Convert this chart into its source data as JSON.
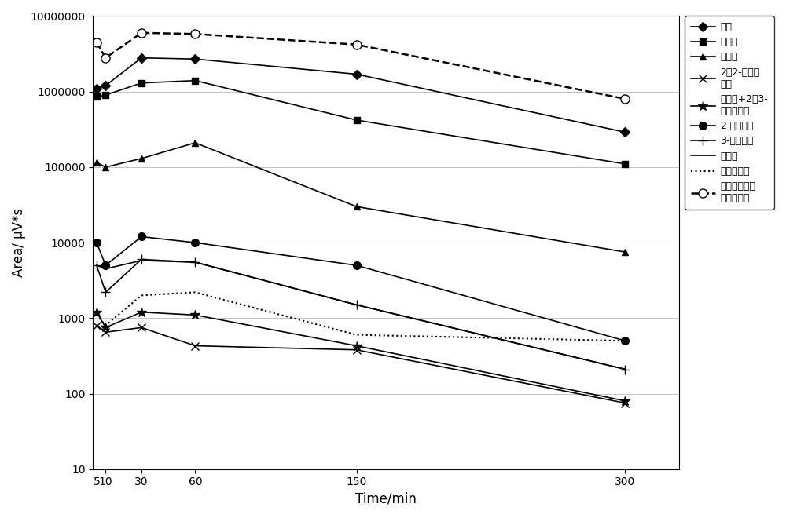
{
  "x": [
    5,
    10,
    30,
    60,
    150,
    300
  ],
  "series": [
    {
      "label": "丙烷",
      "marker": "D",
      "linestyle": "-",
      "color": "#000000",
      "markersize": 6,
      "markerfacecolor": "#000000",
      "linewidth": 1.2,
      "values": [
        1100000,
        1200000,
        2800000,
        2700000,
        1700000,
        290000
      ]
    },
    {
      "label": "正丁烷",
      "marker": "s",
      "linestyle": "-",
      "color": "#000000",
      "markersize": 6,
      "markerfacecolor": "#000000",
      "linewidth": 1.2,
      "values": [
        850000,
        900000,
        1300000,
        1400000,
        420000,
        110000
      ]
    },
    {
      "label": "正戊烷",
      "marker": "^",
      "linestyle": "-",
      "color": "#000000",
      "markersize": 6,
      "markerfacecolor": "#000000",
      "linewidth": 1.2,
      "values": [
        115000,
        100000,
        130000,
        210000,
        30000,
        7500
      ]
    },
    {
      "label": "2，2-二甲基丁烷",
      "marker": "x",
      "linestyle": "-",
      "color": "#000000",
      "markersize": 7,
      "markerfacecolor": "#000000",
      "linewidth": 1.2,
      "values": [
        800,
        650,
        750,
        430,
        380,
        75
      ]
    },
    {
      "label": "环戊烷+2，3-二甲基丁烷",
      "marker": "*",
      "linestyle": "-",
      "color": "#000000",
      "markersize": 9,
      "markerfacecolor": "#000000",
      "linewidth": 1.2,
      "values": [
        1200,
        750,
        1200,
        1100,
        430,
        80
      ]
    },
    {
      "label": "2-甲基戊烷",
      "marker": "o",
      "linestyle": "-",
      "color": "#000000",
      "markersize": 7,
      "markerfacecolor": "#000000",
      "linewidth": 1.2,
      "values": [
        10000,
        5000,
        12000,
        10000,
        5000,
        500
      ]
    },
    {
      "label": "3-甲基戊烷",
      "marker": "+",
      "linestyle": "-",
      "color": "#000000",
      "markersize": 9,
      "markerfacecolor": "#000000",
      "linewidth": 1.2,
      "values": [
        5000,
        2200,
        6000,
        5500,
        1500,
        210
      ]
    },
    {
      "label": "正己烷",
      "marker": "None",
      "linestyle": "-",
      "color": "#000000",
      "markersize": 6,
      "markerfacecolor": "#000000",
      "linewidth": 1.2,
      "values": [
        5000,
        4500,
        5800,
        5500,
        1500,
        210
      ]
    },
    {
      "label": "甲基环戊烷",
      "marker": "None",
      "linestyle": ":",
      "color": "#000000",
      "markersize": 6,
      "markerfacecolor": "#000000",
      "linewidth": 1.5,
      "values": [
        1100,
        800,
        2000,
        2200,
        600,
        500
      ]
    },
    {
      "label": "同一吸附时间的吸附总量",
      "marker": "o",
      "linestyle": "--",
      "color": "#000000",
      "markersize": 8,
      "markerfacecolor": "white",
      "linewidth": 1.8,
      "values": [
        4500000,
        2800000,
        6000000,
        5800000,
        4200000,
        800000
      ]
    }
  ],
  "xlabel": "Time/min",
  "ylabel": "Area/ μV*s",
  "xticks": [
    5,
    10,
    30,
    60,
    150,
    300
  ],
  "yticks": [
    10,
    100,
    1000,
    10000,
    100000,
    1000000,
    10000000
  ],
  "ytick_labels": [
    "10",
    "100",
    "1000",
    "10000",
    "100000",
    "1000000",
    "10000000"
  ],
  "ylim": [
    10,
    10000000
  ],
  "figsize": [
    10.0,
    6.6
  ],
  "dpi": 100,
  "background_color": "#ffffff",
  "legend_labels": [
    "丙烷",
    "正丁烷",
    "正戊烷",
    "2，2-二甲基\n丁烷",
    "环戊烷+2，3-\n二甲基丁烷",
    "2-甲基戊烷",
    "3-甲基戊烷",
    "正己烷",
    "甲基环戊烷",
    "同一吸附时间\n的吸附总量"
  ]
}
